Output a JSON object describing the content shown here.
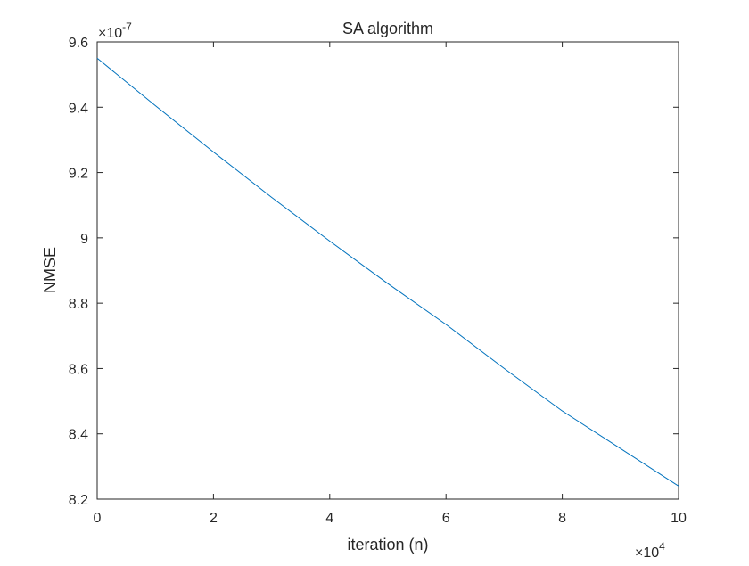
{
  "chart_data": {
    "type": "line",
    "title": "SA algorithm",
    "xlabel": "iteration (n)",
    "ylabel": "NMSE",
    "x_exponent_label": {
      "base": "×10",
      "exp": "4"
    },
    "y_exponent_label": {
      "base": "×10",
      "exp": "-7"
    },
    "xlim": [
      0,
      10
    ],
    "ylim": [
      8.2,
      9.6
    ],
    "x_ticks": [
      0,
      2,
      4,
      6,
      8,
      10
    ],
    "x_tick_labels": [
      "0",
      "2",
      "4",
      "6",
      "8",
      "10"
    ],
    "y_ticks": [
      8.2,
      8.4,
      8.6,
      8.8,
      9.0,
      9.2,
      9.4,
      9.6
    ],
    "y_tick_labels": [
      "8.2",
      "8.4",
      "8.6",
      "8.8",
      "9",
      "9.2",
      "9.4",
      "9.6"
    ],
    "grid": false,
    "series": [
      {
        "color": "#0072BD",
        "x": [
          0,
          1,
          2,
          3,
          4,
          5,
          6,
          7,
          8,
          9,
          10
        ],
        "y": [
          9.55,
          9.405,
          9.263,
          9.124,
          8.99,
          8.86,
          8.735,
          8.6,
          8.47,
          8.355,
          8.24
        ]
      }
    ]
  }
}
